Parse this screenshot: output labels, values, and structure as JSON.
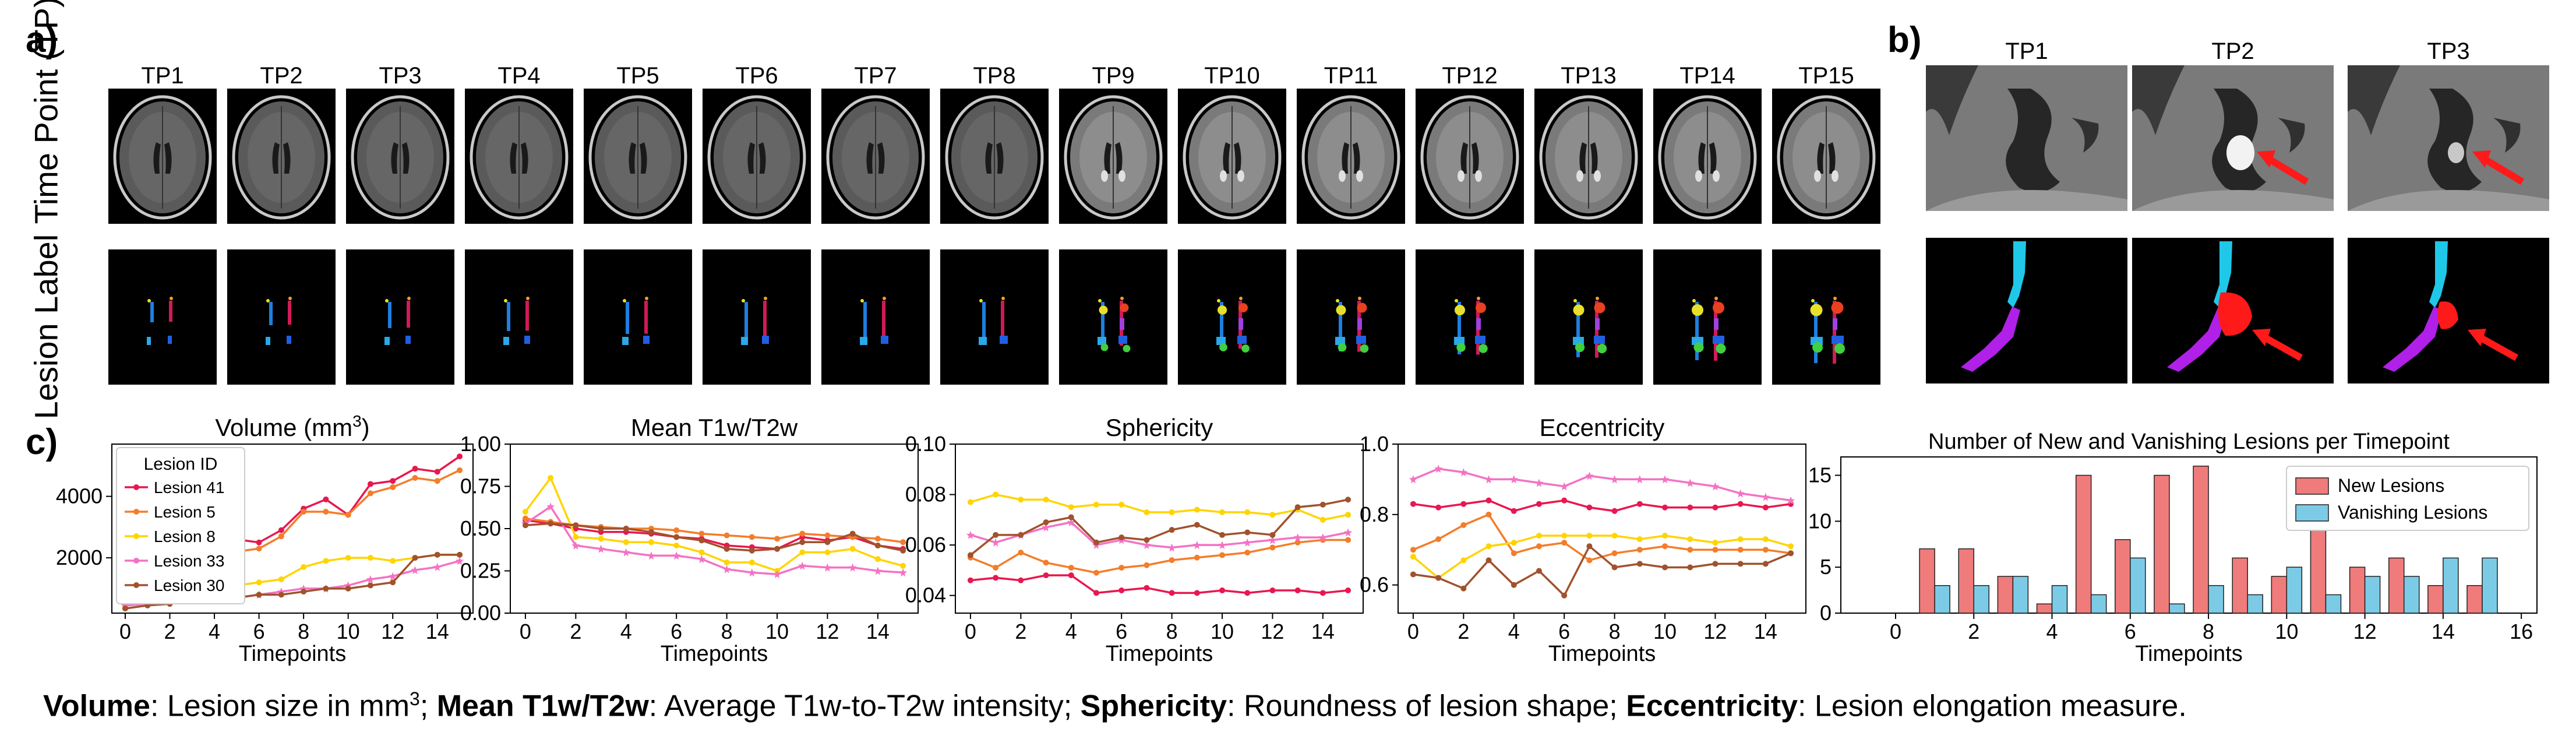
{
  "panels": {
    "a": {
      "letter": "a)",
      "row_labels": [
        "Time Point (TP)",
        "Lesion Label"
      ],
      "timepoints": [
        "TP1",
        "TP2",
        "TP3",
        "TP4",
        "TP5",
        "TP6",
        "TP7",
        "TP8",
        "TP9",
        "TP10",
        "TP11",
        "TP12",
        "TP13",
        "TP14",
        "TP15"
      ]
    },
    "b": {
      "letter": "b)",
      "timepoints": [
        "TP1",
        "TP2",
        "TP3"
      ]
    },
    "c": {
      "letter": "c)"
    }
  },
  "caption": {
    "volume_term": "Volume",
    "volume_def": ": Lesion size in mm",
    "volume_sup": "3",
    "t1t2_term": "Mean T1w/T2w",
    "t1t2_def": ": Average T1w-to-T2w intensity; ",
    "sph_term": "Sphericity",
    "sph_def": ": Roundness of lesion shape; ",
    "ecc_term": "Eccentricity",
    "ecc_def": ": Lesion elongation measure.",
    "sep": "; "
  },
  "colors": {
    "lesion41": "#e8174f",
    "lesion5": "#f47d2a",
    "lesion8": "#ffd400",
    "lesion33": "#f472c4",
    "lesion30": "#a0522d",
    "new_lesions": "#f07b7b",
    "vanishing_lesions": "#7ccbe6",
    "arrow": "#ff1a1a"
  },
  "chart_data": [
    {
      "type": "line",
      "title": "Volume (mm³)",
      "title_text": "Volume (mm",
      "title_sup": "3",
      "xlabel": "Timepoints",
      "ylabel": "",
      "xlim": [
        -0.6,
        15.6
      ],
      "ylim": [
        200,
        5700
      ],
      "xticks": [
        "0",
        "2",
        "4",
        "6",
        "8",
        "10",
        "12",
        "14"
      ],
      "yticks": [
        "2000",
        "4000"
      ],
      "legend_title": "Lesion ID",
      "legend_position": "top-left",
      "x": [
        0,
        1,
        2,
        3,
        4,
        5,
        6,
        7,
        8,
        9,
        10,
        11,
        12,
        13,
        14,
        15
      ],
      "series": [
        {
          "name": "Lesion 41",
          "values": [
            500,
            520,
            800,
            750,
            2000,
            2600,
            2500,
            2900,
            3600,
            3900,
            3400,
            4400,
            4500,
            4900,
            4800,
            5300
          ]
        },
        {
          "name": "Lesion 5",
          "values": [
            450,
            500,
            620,
            700,
            1600,
            2200,
            2300,
            2700,
            3500,
            3500,
            3400,
            4100,
            4300,
            4600,
            4500,
            4850
          ]
        },
        {
          "name": "Lesion 8",
          "values": [
            750,
            600,
            900,
            900,
            1000,
            1100,
            1200,
            1300,
            1700,
            1900,
            2000,
            2000,
            1900,
            2000,
            2100,
            2100
          ]
        },
        {
          "name": "Lesion 33",
          "values": [
            450,
            500,
            600,
            650,
            750,
            700,
            800,
            900,
            1000,
            1000,
            1100,
            1300,
            1400,
            1600,
            1700,
            1900
          ]
        },
        {
          "name": "Lesion 30",
          "values": [
            350,
            450,
            500,
            700,
            800,
            700,
            800,
            800,
            900,
            1000,
            1000,
            1100,
            1200,
            2000,
            2100,
            2100
          ]
        }
      ]
    },
    {
      "type": "line",
      "title": "Mean T1w/T2w",
      "xlabel": "Timepoints",
      "ylabel": "",
      "xlim": [
        -0.6,
        15.6
      ],
      "ylim": [
        0.0,
        1.0
      ],
      "xticks": [
        "0",
        "2",
        "4",
        "6",
        "8",
        "10",
        "12",
        "14"
      ],
      "yticks": [
        "0.00",
        "0.25",
        "0.50",
        "0.75",
        "1.00"
      ],
      "x": [
        0,
        1,
        2,
        3,
        4,
        5,
        6,
        7,
        8,
        9,
        10,
        11,
        12,
        13,
        14,
        15
      ],
      "series": [
        {
          "name": "Lesion 41",
          "values": [
            0.55,
            0.53,
            0.5,
            0.48,
            0.48,
            0.47,
            0.45,
            0.44,
            0.4,
            0.39,
            0.38,
            0.45,
            0.43,
            0.45,
            0.4,
            0.38
          ]
        },
        {
          "name": "Lesion 5",
          "values": [
            0.56,
            0.54,
            0.52,
            0.51,
            0.5,
            0.5,
            0.49,
            0.47,
            0.46,
            0.45,
            0.44,
            0.47,
            0.46,
            0.45,
            0.44,
            0.42
          ]
        },
        {
          "name": "Lesion 8",
          "values": [
            0.6,
            0.8,
            0.45,
            0.44,
            0.42,
            0.42,
            0.4,
            0.36,
            0.3,
            0.3,
            0.25,
            0.36,
            0.36,
            0.38,
            0.32,
            0.28
          ]
        },
        {
          "name": "Lesion 33",
          "values": [
            0.53,
            0.63,
            0.4,
            0.38,
            0.36,
            0.34,
            0.34,
            0.32,
            0.26,
            0.24,
            0.23,
            0.28,
            0.27,
            0.27,
            0.25,
            0.24
          ]
        },
        {
          "name": "Lesion 30",
          "values": [
            0.52,
            0.53,
            0.52,
            0.5,
            0.5,
            0.48,
            0.45,
            0.43,
            0.38,
            0.37,
            0.38,
            0.42,
            0.42,
            0.47,
            0.4,
            0.37
          ]
        }
      ]
    },
    {
      "type": "line",
      "title": "Sphericity",
      "xlabel": "Timepoints",
      "ylabel": "",
      "xlim": [
        -0.6,
        15.6
      ],
      "ylim": [
        0.033,
        0.1
      ],
      "xticks": [
        "0",
        "2",
        "4",
        "6",
        "8",
        "10",
        "12",
        "14"
      ],
      "yticks": [
        "0.04",
        "0.06",
        "0.08",
        "0.10"
      ],
      "x": [
        0,
        1,
        2,
        3,
        4,
        5,
        6,
        7,
        8,
        9,
        10,
        11,
        12,
        13,
        14,
        15
      ],
      "series": [
        {
          "name": "Lesion 41",
          "values": [
            0.046,
            0.047,
            0.046,
            0.048,
            0.048,
            0.041,
            0.042,
            0.043,
            0.041,
            0.041,
            0.042,
            0.041,
            0.042,
            0.042,
            0.041,
            0.042
          ]
        },
        {
          "name": "Lesion 5",
          "values": [
            0.055,
            0.051,
            0.057,
            0.053,
            0.051,
            0.049,
            0.051,
            0.052,
            0.054,
            0.055,
            0.056,
            0.057,
            0.059,
            0.061,
            0.062,
            0.062
          ]
        },
        {
          "name": "Lesion 8",
          "values": [
            0.077,
            0.08,
            0.078,
            0.078,
            0.075,
            0.076,
            0.076,
            0.073,
            0.073,
            0.074,
            0.073,
            0.073,
            0.072,
            0.074,
            0.07,
            0.072
          ]
        },
        {
          "name": "Lesion 33",
          "values": [
            0.064,
            0.061,
            0.064,
            0.067,
            0.069,
            0.06,
            0.062,
            0.06,
            0.059,
            0.06,
            0.06,
            0.061,
            0.062,
            0.063,
            0.063,
            0.065
          ]
        },
        {
          "name": "Lesion 30",
          "values": [
            0.056,
            0.064,
            0.064,
            0.069,
            0.071,
            0.061,
            0.063,
            0.062,
            0.066,
            0.068,
            0.064,
            0.065,
            0.064,
            0.075,
            0.076,
            0.078
          ]
        }
      ]
    },
    {
      "type": "line",
      "title": "Eccentricity",
      "xlabel": "Timepoints",
      "ylabel": "",
      "xlim": [
        -0.6,
        15.6
      ],
      "ylim": [
        0.52,
        1.0
      ],
      "xticks": [
        "0",
        "2",
        "4",
        "6",
        "8",
        "10",
        "12",
        "14"
      ],
      "yticks": [
        "0.6",
        "0.8",
        "1.0"
      ],
      "x": [
        0,
        1,
        2,
        3,
        4,
        5,
        6,
        7,
        8,
        9,
        10,
        11,
        12,
        13,
        14,
        15
      ],
      "series": [
        {
          "name": "Lesion 41",
          "values": [
            0.83,
            0.82,
            0.83,
            0.84,
            0.81,
            0.83,
            0.84,
            0.82,
            0.81,
            0.83,
            0.82,
            0.82,
            0.82,
            0.83,
            0.82,
            0.83
          ]
        },
        {
          "name": "Lesion 5",
          "values": [
            0.7,
            0.73,
            0.77,
            0.8,
            0.69,
            0.71,
            0.72,
            0.67,
            0.69,
            0.7,
            0.71,
            0.7,
            0.7,
            0.7,
            0.7,
            0.69
          ]
        },
        {
          "name": "Lesion 8",
          "values": [
            0.68,
            0.62,
            0.67,
            0.71,
            0.72,
            0.74,
            0.74,
            0.74,
            0.74,
            0.73,
            0.74,
            0.73,
            0.72,
            0.73,
            0.73,
            0.71
          ]
        },
        {
          "name": "Lesion 33",
          "values": [
            0.9,
            0.93,
            0.92,
            0.9,
            0.9,
            0.89,
            0.88,
            0.91,
            0.9,
            0.9,
            0.9,
            0.89,
            0.88,
            0.86,
            0.85,
            0.84
          ]
        },
        {
          "name": "Lesion 30",
          "values": [
            0.63,
            0.62,
            0.59,
            0.67,
            0.6,
            0.64,
            0.57,
            0.71,
            0.65,
            0.66,
            0.65,
            0.65,
            0.66,
            0.66,
            0.66,
            0.69
          ]
        }
      ]
    },
    {
      "type": "bar",
      "title": "Number of New and Vanishing Lesions per Timepoint",
      "xlabel": "Timepoints",
      "ylabel": "",
      "xlim": [
        -1.4,
        16.4
      ],
      "ylim": [
        0,
        17
      ],
      "xticks": [
        "0",
        "2",
        "4",
        "6",
        "8",
        "10",
        "12",
        "14",
        "16"
      ],
      "yticks": [
        "0",
        "5",
        "10",
        "15"
      ],
      "legend_position": "top-right",
      "categories": [
        "1",
        "2",
        "3",
        "4",
        "5",
        "6",
        "7",
        "8",
        "9",
        "10",
        "11",
        "12",
        "13",
        "14",
        "15"
      ],
      "series": [
        {
          "name": "New Lesions",
          "values": [
            7,
            7,
            4,
            1,
            15,
            8,
            15,
            16,
            6,
            4,
            9,
            5,
            6,
            3,
            3
          ]
        },
        {
          "name": "Vanishing Lesions",
          "values": [
            3,
            3,
            4,
            3,
            2,
            6,
            1,
            3,
            2,
            5,
            2,
            4,
            4,
            6,
            6
          ]
        }
      ]
    }
  ]
}
